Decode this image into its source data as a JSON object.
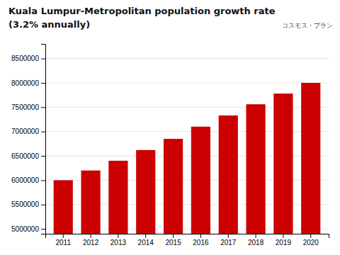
{
  "chart_data": {
    "type": "bar",
    "title": "Kuala Lumpur-Metropolitan population growth rate",
    "subtitle": "(3.2% annually)",
    "annotations": [
      "コスモス・プラン"
    ],
    "categories": [
      "2011",
      "2012",
      "2013",
      "2014",
      "2015",
      "2016",
      "2017",
      "2018",
      "2019",
      "2020"
    ],
    "values": [
      6000000,
      6200000,
      6400000,
      6620000,
      6850000,
      7100000,
      7330000,
      7560000,
      7780000,
      8000000
    ],
    "color": "#cc0000",
    "ylim": [
      4900000,
      8800000
    ],
    "yticks": [
      5000000,
      5500000,
      6000000,
      6500000,
      7000000,
      7500000,
      8000000,
      8500000
    ],
    "grid": true
  }
}
